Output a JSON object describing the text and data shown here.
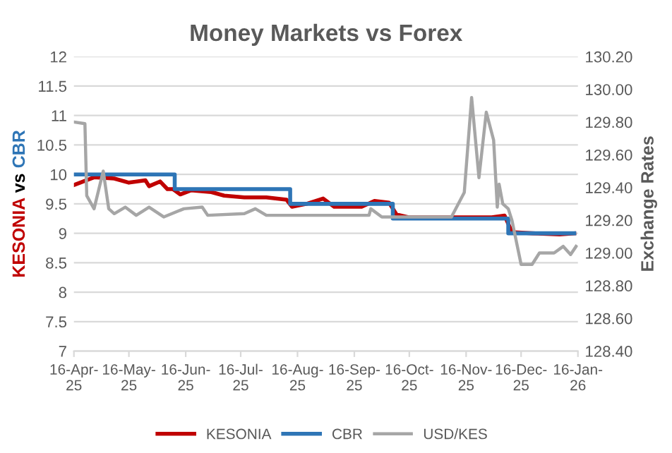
{
  "chart_data": {
    "type": "line",
    "title": "Money Markets vs Forex",
    "ylabel": "KESONIA vs CBR",
    "y2label": "Exchange Rates",
    "xlim": [
      "2025-04-16",
      "2026-01-16"
    ],
    "xticks": [
      {
        "value": "2025-04-16",
        "label": "16-Apr-25"
      },
      {
        "value": "2025-05-16",
        "label": "16-May-25"
      },
      {
        "value": "2025-06-16",
        "label": "16-Jun-25"
      },
      {
        "value": "2025-07-16",
        "label": "16-Jul-25"
      },
      {
        "value": "2025-08-16",
        "label": "16-Aug-25"
      },
      {
        "value": "2025-09-16",
        "label": "16-Sep-25"
      },
      {
        "value": "2025-10-16",
        "label": "16-Oct-25"
      },
      {
        "value": "2025-11-16",
        "label": "16-Nov-25"
      },
      {
        "value": "2025-12-16",
        "label": "16-Dec-25"
      },
      {
        "value": "2026-01-16",
        "label": "16-Jan-26"
      }
    ],
    "ylim": [
      7,
      12
    ],
    "yticks": [
      7,
      7.5,
      8,
      8.5,
      9,
      9.5,
      10,
      10.5,
      11,
      11.5,
      12
    ],
    "y2lim": [
      128.4,
      130.2
    ],
    "y2ticks": [
      {
        "value": 128.4,
        "label": "128.40"
      },
      {
        "value": 128.6,
        "label": "128.60"
      },
      {
        "value": 128.8,
        "label": "128.80"
      },
      {
        "value": 129.0,
        "label": "129.00"
      },
      {
        "value": 129.2,
        "label": "129.20"
      },
      {
        "value": 129.4,
        "label": "129.40"
      },
      {
        "value": 129.6,
        "label": "129.60"
      },
      {
        "value": 129.8,
        "label": "129.80"
      },
      {
        "value": 130.0,
        "label": "130.00"
      },
      {
        "value": 130.2,
        "label": "130.20"
      }
    ],
    "grid": "y",
    "legend": "bottom",
    "series": [
      {
        "name": "KESONIA",
        "color": "#c00000",
        "x": [
          "2025-04-16",
          "2025-04-27",
          "2025-05-08",
          "2025-05-16",
          "2025-05-25",
          "2025-05-27",
          "2025-06-02",
          "2025-06-06",
          "2025-06-09",
          "2025-06-13",
          "2025-06-19",
          "2025-06-30",
          "2025-07-07",
          "2025-07-18",
          "2025-07-30",
          "2025-08-10",
          "2025-08-13",
          "2025-08-21",
          "2025-08-30",
          "2025-09-05",
          "2025-09-20",
          "2025-09-27",
          "2025-10-05",
          "2025-10-09",
          "2025-10-16",
          "2025-11-08",
          "2025-11-30",
          "2025-12-07",
          "2025-12-11",
          "2025-12-22",
          "2026-01-06",
          "2026-01-14"
        ],
        "values": [
          9.82,
          9.95,
          9.93,
          9.86,
          9.9,
          9.8,
          9.88,
          9.75,
          9.75,
          9.66,
          9.73,
          9.7,
          9.64,
          9.61,
          9.61,
          9.57,
          9.45,
          9.5,
          9.59,
          9.45,
          9.45,
          9.55,
          9.52,
          9.32,
          9.27,
          9.27,
          9.27,
          9.3,
          9.02,
          9.0,
          8.98,
          9.0
        ]
      },
      {
        "name": "CBR",
        "color": "#2e75b6",
        "type": "step",
        "x": [
          "2025-04-16",
          "2025-06-10",
          "2025-08-12",
          "2025-10-07",
          "2025-12-09",
          "2026-01-14"
        ],
        "values": [
          10,
          9.75,
          9.5,
          9.25,
          9.0,
          9.0
        ]
      },
      {
        "name": "USD/KES",
        "color": "#a6a6a6",
        "axis": "y2",
        "x": [
          "2025-04-16",
          "2025-04-22",
          "2025-04-23",
          "2025-04-27",
          "2025-05-02",
          "2025-05-05",
          "2025-05-08",
          "2025-05-14",
          "2025-05-20",
          "2025-05-27",
          "2025-06-04",
          "2025-06-15",
          "2025-06-25",
          "2025-06-28",
          "2025-07-18",
          "2025-07-24",
          "2025-07-30",
          "2025-09-24",
          "2025-09-25",
          "2025-10-01",
          "2025-11-08",
          "2025-11-15",
          "2025-11-19",
          "2025-11-23",
          "2025-11-27",
          "2025-12-01",
          "2025-12-03",
          "2025-12-04",
          "2025-12-06",
          "2025-12-09",
          "2025-12-11",
          "2025-12-16",
          "2025-12-22",
          "2025-12-26",
          "2026-01-03",
          "2026-01-08",
          "2026-01-12",
          "2026-01-15"
        ],
        "values": [
          129.8,
          129.79,
          129.35,
          129.27,
          129.5,
          129.27,
          129.24,
          129.28,
          129.23,
          129.28,
          129.22,
          129.27,
          129.28,
          129.23,
          129.24,
          129.27,
          129.23,
          129.23,
          129.27,
          129.22,
          129.22,
          129.37,
          129.95,
          129.46,
          129.86,
          129.69,
          129.28,
          129.42,
          129.3,
          129.27,
          129.2,
          128.93,
          128.93,
          129.0,
          129.0,
          129.04,
          128.99,
          129.04
        ]
      }
    ]
  }
}
